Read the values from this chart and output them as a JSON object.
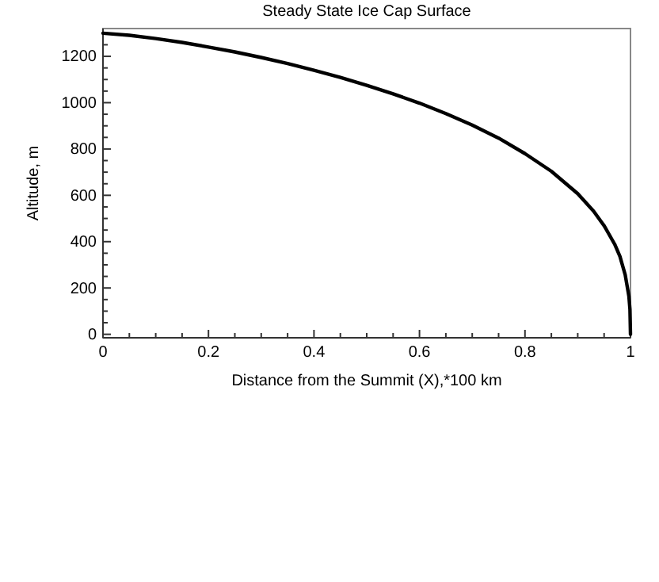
{
  "chart_data": {
    "type": "line",
    "title": "Steady State Ice Cap Surface",
    "xlabel": "Distance from the Summit (X),*100 km",
    "ylabel": "Altitude, m",
    "x": [
      0,
      0.05,
      0.1,
      0.15,
      0.2,
      0.25,
      0.3,
      0.35,
      0.4,
      0.45,
      0.5,
      0.55,
      0.6,
      0.65,
      0.7,
      0.75,
      0.8,
      0.85,
      0.9,
      0.93,
      0.95,
      0.97,
      0.98,
      0.99,
      0.997,
      0.999,
      1
    ],
    "series": [
      {
        "color": "#000000",
        "values": [
          1300,
          1291,
          1277,
          1260,
          1240,
          1219,
          1195,
          1169,
          1140,
          1109,
          1075,
          1038,
          998,
          953,
          903,
          847,
          780,
          704,
          607,
          532,
          469,
          389,
          336,
          257,
          164,
          108,
          0
        ]
      }
    ],
    "xlim": [
      0,
      1
    ],
    "ylim": [
      -15,
      1320
    ],
    "xticks": [
      0,
      {
        "value": 0.05,
        "label": null
      },
      {
        "value": 0.1,
        "label": null
      },
      {
        "value": 0.15,
        "label": null
      },
      0.2,
      {
        "value": 0.25,
        "label": null
      },
      {
        "value": 0.3,
        "label": null
      },
      {
        "value": 0.35,
        "label": null
      },
      0.4,
      {
        "value": 0.45,
        "label": null
      },
      {
        "value": 0.5,
        "label": null
      },
      {
        "value": 0.55,
        "label": null
      },
      0.6,
      {
        "value": 0.65,
        "label": null
      },
      {
        "value": 0.7,
        "label": null
      },
      {
        "value": 0.75,
        "label": null
      },
      0.8,
      {
        "value": 0.85,
        "label": null
      },
      {
        "value": 0.9,
        "label": null
      },
      {
        "value": 0.95,
        "label": null
      },
      1
    ],
    "yticks": [
      0,
      {
        "value": 50,
        "label": null
      },
      {
        "value": 100,
        "label": null
      },
      {
        "value": 150,
        "label": null
      },
      200,
      {
        "value": 250,
        "label": null
      },
      {
        "value": 300,
        "label": null
      },
      {
        "value": 350,
        "label": null
      },
      400,
      {
        "value": 450,
        "label": null
      },
      {
        "value": 500,
        "label": null
      },
      {
        "value": 550,
        "label": null
      },
      600,
      {
        "value": 650,
        "label": null
      },
      {
        "value": 700,
        "label": null
      },
      {
        "value": 750,
        "label": null
      },
      800,
      {
        "value": 850,
        "label": null
      },
      {
        "value": 900,
        "label": null
      },
      {
        "value": 950,
        "label": null
      },
      1000,
      {
        "value": 1050,
        "label": null
      },
      {
        "value": 1100,
        "label": null
      },
      {
        "value": 1150,
        "label": null
      },
      1200,
      {
        "value": 1250,
        "label": null
      },
      {
        "value": 1300,
        "label": null
      }
    ],
    "marker": "none",
    "line_style": "solid",
    "grid": false
  }
}
